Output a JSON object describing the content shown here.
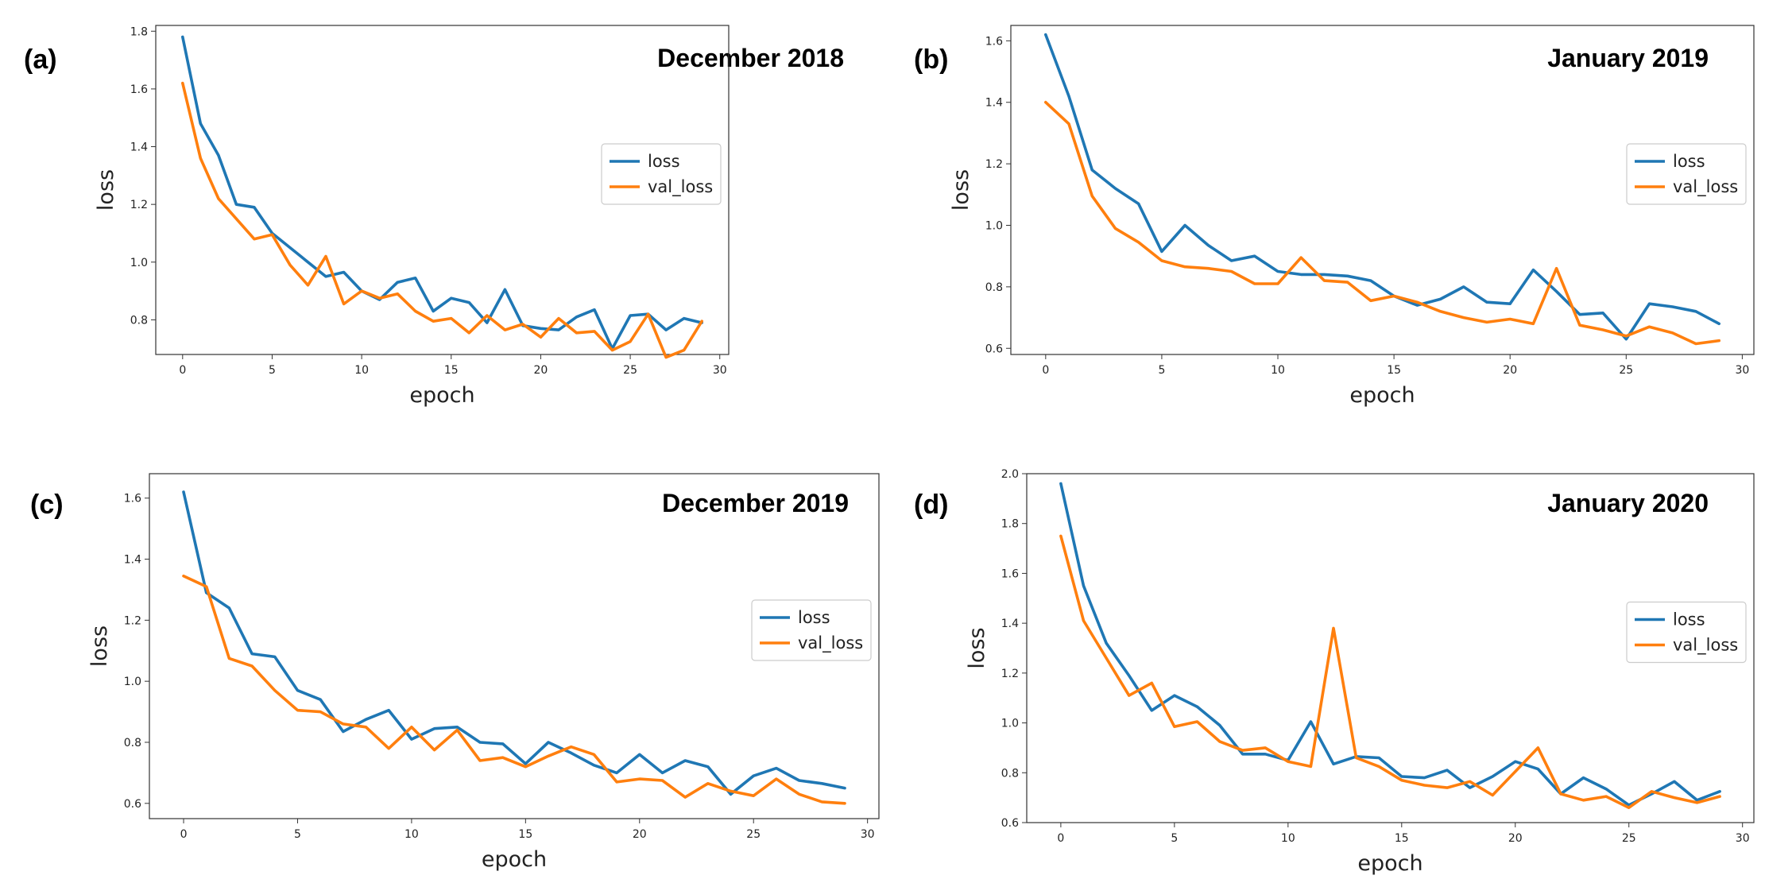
{
  "colors": {
    "loss": "#1f77b4",
    "val_loss": "#ff7f0e"
  },
  "chart_data": [
    {
      "type": "line",
      "panel_label": "(a)",
      "title": "December 2018",
      "xlabel": "epoch",
      "ylabel": "loss",
      "xlim": [
        -1.5,
        30.5
      ],
      "ylim": [
        0.68,
        1.82
      ],
      "xticks": [
        0,
        5,
        10,
        15,
        20,
        25,
        30
      ],
      "yticks": [
        0.8,
        1.0,
        1.2,
        1.4,
        1.6,
        1.8
      ],
      "ytick_decimals": 1,
      "legend_position": "center-right",
      "x": [
        0,
        1,
        2,
        3,
        4,
        5,
        6,
        7,
        8,
        9,
        10,
        11,
        12,
        13,
        14,
        15,
        16,
        17,
        18,
        19,
        20,
        21,
        22,
        23,
        24,
        25,
        26,
        27,
        28,
        29
      ],
      "series": [
        {
          "name": "loss",
          "color": "#1f77b4",
          "values": [
            1.78,
            1.48,
            1.37,
            1.2,
            1.19,
            1.1,
            1.05,
            1.0,
            0.95,
            0.965,
            0.9,
            0.87,
            0.93,
            0.945,
            0.83,
            0.875,
            0.86,
            0.79,
            0.905,
            0.78,
            0.77,
            0.765,
            0.81,
            0.835,
            0.7,
            0.815,
            0.82,
            0.765,
            0.805,
            0.79
          ]
        },
        {
          "name": "val_loss",
          "color": "#ff7f0e",
          "values": [
            1.62,
            1.36,
            1.22,
            1.15,
            1.08,
            1.095,
            0.99,
            0.92,
            1.02,
            0.855,
            0.9,
            0.875,
            0.89,
            0.83,
            0.795,
            0.805,
            0.755,
            0.815,
            0.765,
            0.785,
            0.74,
            0.805,
            0.755,
            0.76,
            0.695,
            0.725,
            0.82,
            0.67,
            0.695,
            0.795
          ]
        }
      ]
    },
    {
      "type": "line",
      "panel_label": "(b)",
      "title": "January 2019",
      "xlabel": "epoch",
      "ylabel": "loss",
      "xlim": [
        -1.5,
        30.5
      ],
      "ylim": [
        0.58,
        1.65
      ],
      "xticks": [
        0,
        5,
        10,
        15,
        20,
        25,
        30
      ],
      "yticks": [
        0.6,
        0.8,
        1.0,
        1.2,
        1.4,
        1.6
      ],
      "ytick_decimals": 1,
      "legend_position": "center-right",
      "x": [
        0,
        1,
        2,
        3,
        4,
        5,
        6,
        7,
        8,
        9,
        10,
        11,
        12,
        13,
        14,
        15,
        16,
        17,
        18,
        19,
        20,
        21,
        22,
        23,
        24,
        25,
        26,
        27,
        28,
        29
      ],
      "series": [
        {
          "name": "loss",
          "color": "#1f77b4",
          "values": [
            1.62,
            1.42,
            1.18,
            1.12,
            1.07,
            0.915,
            1.0,
            0.935,
            0.885,
            0.9,
            0.85,
            0.84,
            0.84,
            0.835,
            0.82,
            0.77,
            0.74,
            0.76,
            0.8,
            0.75,
            0.745,
            0.855,
            0.785,
            0.71,
            0.715,
            0.63,
            0.745,
            0.735,
            0.72,
            0.68
          ]
        },
        {
          "name": "val_loss",
          "color": "#ff7f0e",
          "values": [
            1.4,
            1.33,
            1.095,
            0.99,
            0.945,
            0.885,
            0.865,
            0.86,
            0.85,
            0.81,
            0.81,
            0.895,
            0.82,
            0.815,
            0.755,
            0.77,
            0.75,
            0.72,
            0.7,
            0.685,
            0.695,
            0.68,
            0.86,
            0.675,
            0.66,
            0.64,
            0.67,
            0.65,
            0.615,
            0.625
          ]
        }
      ]
    },
    {
      "type": "line",
      "panel_label": "(c)",
      "title": "December 2019",
      "xlabel": "epoch",
      "ylabel": "loss",
      "xlim": [
        -1.5,
        30.5
      ],
      "ylim": [
        0.55,
        1.68
      ],
      "xticks": [
        0,
        5,
        10,
        15,
        20,
        25,
        30
      ],
      "yticks": [
        0.6,
        0.8,
        1.0,
        1.2,
        1.4,
        1.6
      ],
      "ytick_decimals": 1,
      "legend_position": "center-right",
      "x": [
        0,
        1,
        2,
        3,
        4,
        5,
        6,
        7,
        8,
        9,
        10,
        11,
        12,
        13,
        14,
        15,
        16,
        17,
        18,
        19,
        20,
        21,
        22,
        23,
        24,
        25,
        26,
        27,
        28,
        29
      ],
      "series": [
        {
          "name": "loss",
          "color": "#1f77b4",
          "values": [
            1.62,
            1.29,
            1.24,
            1.09,
            1.08,
            0.97,
            0.94,
            0.835,
            0.875,
            0.905,
            0.81,
            0.845,
            0.85,
            0.8,
            0.795,
            0.73,
            0.8,
            0.765,
            0.725,
            0.7,
            0.76,
            0.7,
            0.74,
            0.72,
            0.63,
            0.69,
            0.715,
            0.675,
            0.665,
            0.65
          ]
        },
        {
          "name": "val_loss",
          "color": "#ff7f0e",
          "values": [
            1.345,
            1.31,
            1.075,
            1.05,
            0.97,
            0.905,
            0.9,
            0.86,
            0.85,
            0.78,
            0.85,
            0.775,
            0.84,
            0.74,
            0.75,
            0.72,
            0.755,
            0.785,
            0.76,
            0.67,
            0.68,
            0.675,
            0.62,
            0.665,
            0.64,
            0.625,
            0.68,
            0.63,
            0.605,
            0.6
          ]
        }
      ]
    },
    {
      "type": "line",
      "panel_label": "(d)",
      "title": "January 2020",
      "xlabel": "epoch",
      "ylabel": "loss",
      "xlim": [
        -1.5,
        30.5
      ],
      "ylim": [
        0.6,
        2.0
      ],
      "xticks": [
        0,
        5,
        10,
        15,
        20,
        25,
        30
      ],
      "yticks": [
        0.6,
        0.8,
        1.0,
        1.2,
        1.4,
        1.6,
        1.8,
        2.0
      ],
      "ytick_decimals": 1,
      "legend_position": "center-right",
      "x": [
        0,
        1,
        2,
        3,
        4,
        5,
        6,
        7,
        8,
        9,
        10,
        11,
        12,
        13,
        14,
        15,
        16,
        17,
        18,
        19,
        20,
        21,
        22,
        23,
        24,
        25,
        26,
        27,
        28,
        29
      ],
      "series": [
        {
          "name": "loss",
          "color": "#1f77b4",
          "values": [
            1.96,
            1.55,
            1.32,
            1.19,
            1.05,
            1.11,
            1.065,
            0.99,
            0.875,
            0.875,
            0.85,
            1.005,
            0.835,
            0.865,
            0.86,
            0.785,
            0.78,
            0.81,
            0.74,
            0.785,
            0.845,
            0.815,
            0.715,
            0.78,
            0.735,
            0.67,
            0.715,
            0.765,
            0.69,
            0.725
          ]
        },
        {
          "name": "val_loss",
          "color": "#ff7f0e",
          "values": [
            1.75,
            1.41,
            1.26,
            1.11,
            1.16,
            0.985,
            1.005,
            0.925,
            0.89,
            0.9,
            0.845,
            0.825,
            1.38,
            0.86,
            0.825,
            0.77,
            0.75,
            0.74,
            0.765,
            0.71,
            0.805,
            0.9,
            0.715,
            0.69,
            0.705,
            0.66,
            0.725,
            0.7,
            0.68,
            0.705
          ]
        }
      ]
    }
  ]
}
